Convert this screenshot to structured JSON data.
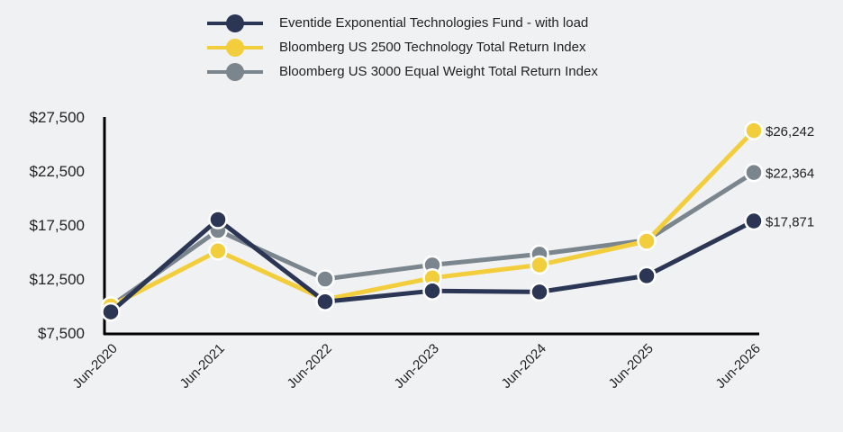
{
  "chart_data": {
    "type": "line",
    "title": "",
    "xlabel": "",
    "ylabel": "",
    "categories": [
      "Jun-2020",
      "Jun-2021",
      "Jun-2022",
      "Jun-2023",
      "Jun-2024",
      "Jun-2025",
      "Jun-2026"
    ],
    "y_ticks": [
      "$27,500",
      "$22,500",
      "$17,500",
      "$12,500",
      "$7,500"
    ],
    "y_tick_values": [
      27500,
      22500,
      17500,
      12500,
      7500
    ],
    "ylim": [
      7500,
      27500
    ],
    "grid": false,
    "legend_position": "top",
    "series": [
      {
        "name": "Eventide Exponential Technologies Fund - with load",
        "color": "#2b3554",
        "values": [
          9450,
          18000,
          10400,
          11400,
          11300,
          12800,
          17871
        ],
        "end_label": "$17,871"
      },
      {
        "name": "Bloomberg US 2500 Technology Total Return Index",
        "color": "#f2cd3c",
        "values": [
          10000,
          15100,
          10600,
          12600,
          13800,
          16000,
          26242
        ],
        "end_label": "$26,242"
      },
      {
        "name": "Bloomberg US 3000 Equal Weight Total Return Index",
        "color": "#7b858e",
        "values": [
          10000,
          17000,
          12500,
          13800,
          14800,
          16100,
          22364
        ],
        "end_label": "$22,364"
      }
    ],
    "draw_order": [
      2,
      1,
      0
    ]
  }
}
